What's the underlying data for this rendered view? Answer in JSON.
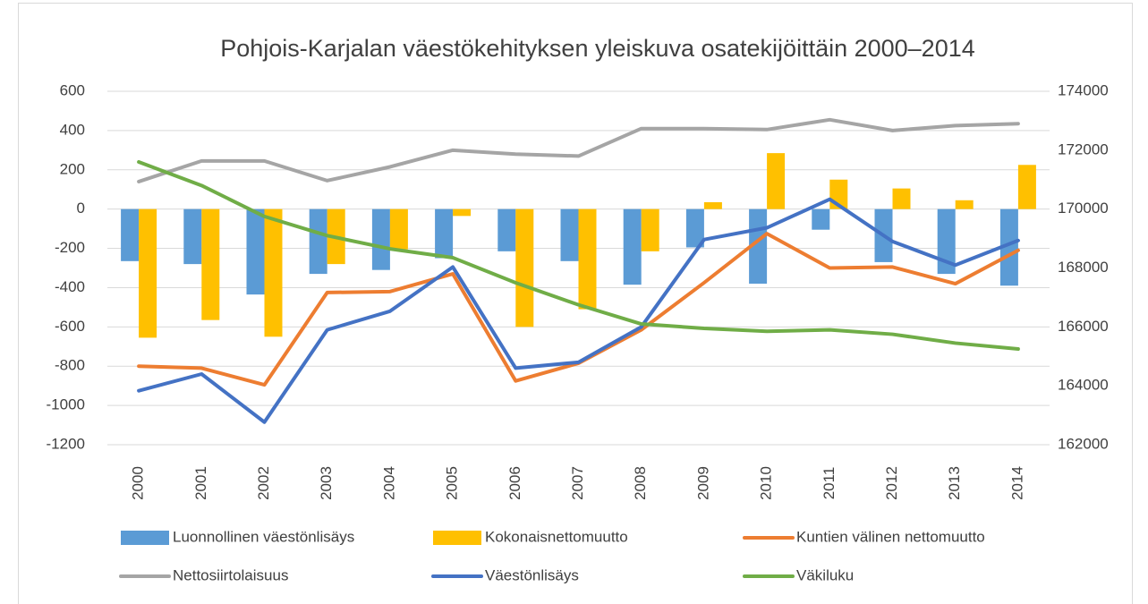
{
  "chart_data": {
    "type": "combo",
    "title": "Pohjois-Karjalan väestökehityksen yleiskuva osatekijöittäin 2000–2014",
    "categories": [
      "2000",
      "2001",
      "2002",
      "2003",
      "2004",
      "2005",
      "2006",
      "2007",
      "2008",
      "2009",
      "2010",
      "2011",
      "2012",
      "2013",
      "2014"
    ],
    "series": [
      {
        "name": "Luonnollinen väestönlisäys",
        "type": "bar",
        "color": "#5b9bd5",
        "values": [
          -265,
          -280,
          -435,
          -330,
          -310,
          -250,
          -215,
          -265,
          -385,
          -195,
          -380,
          -105,
          -270,
          -330,
          -390
        ]
      },
      {
        "name": "Kokonaisnettomuutto",
        "type": "bar",
        "color": "#ffc000",
        "values": [
          -655,
          -565,
          -650,
          -280,
          -205,
          -35,
          -600,
          -510,
          -215,
          35,
          285,
          150,
          105,
          45,
          225
        ]
      },
      {
        "name": "Kuntien välinen nettomuutto",
        "type": "line",
        "color": "#ed7d31",
        "values": [
          -800,
          -810,
          -895,
          -425,
          -420,
          -330,
          -875,
          -785,
          -615,
          -375,
          -125,
          -300,
          -295,
          -380,
          -210
        ]
      },
      {
        "name": "Nettosiirtolaisuus",
        "type": "line",
        "color": "#a5a5a5",
        "values": [
          140,
          245,
          245,
          145,
          215,
          300,
          280,
          270,
          410,
          410,
          405,
          455,
          400,
          425,
          435
        ]
      },
      {
        "name": "Väestönlisäys",
        "type": "line",
        "color": "#4472c4",
        "values": [
          -925,
          -840,
          -1085,
          -615,
          -520,
          -295,
          -810,
          -780,
          -600,
          -155,
          -95,
          50,
          -165,
          -285,
          -160
        ]
      },
      {
        "name": "Väkiluku",
        "type": "line",
        "axis": "y2",
        "color": "#70ad47",
        "values": [
          171600,
          170800,
          169750,
          169100,
          168650,
          168350,
          167500,
          166750,
          166100,
          165950,
          165850,
          165900,
          165750,
          165450,
          165250
        ]
      }
    ],
    "ylim": [
      -1200,
      600
    ],
    "yticks": [
      -1200,
      -1000,
      -800,
      -600,
      -400,
      -200,
      0,
      200,
      400,
      600
    ],
    "y2lim": [
      162000,
      174000
    ],
    "y2ticks": [
      162000,
      164000,
      166000,
      168000,
      170000,
      172000,
      174000
    ],
    "grid": true,
    "legend": "bottom"
  }
}
